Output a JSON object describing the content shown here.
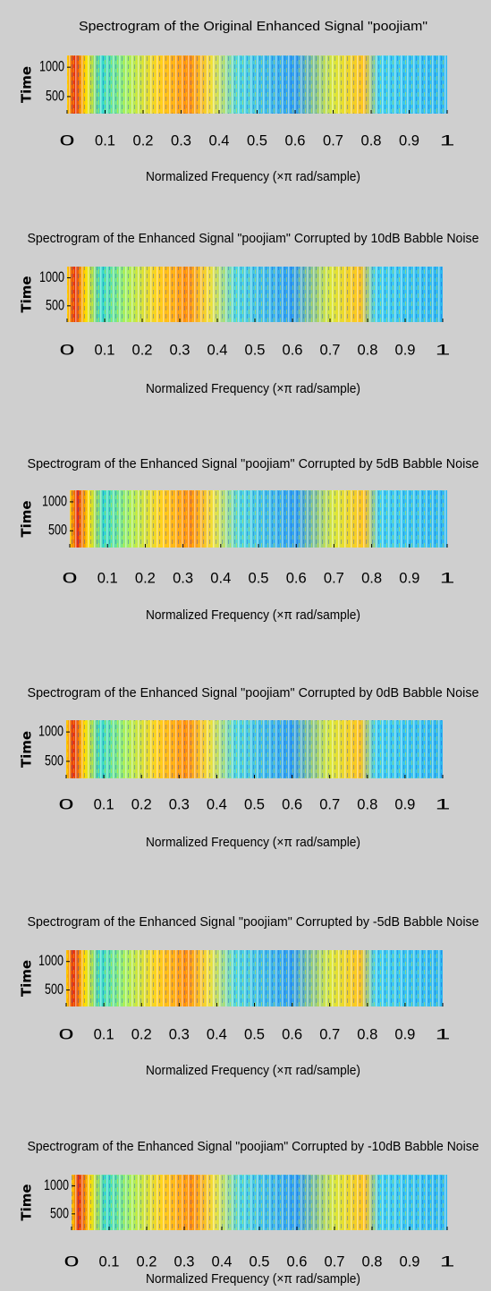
{
  "charts": [
    {
      "chart_data": {
        "type": "spectrogram",
        "title": "Spectrogram of the Original Enhanced Signal \"poojiam\"",
        "xlabel": "Normalized Frequency  (×π rad/sample)",
        "ylabel": "Time",
        "xlim": [
          0,
          1
        ],
        "xticks": [
          0,
          0.1,
          0.2,
          0.3,
          0.4,
          0.5,
          0.6,
          0.7,
          0.8,
          0.9,
          1
        ],
        "ylim": [
          210,
          1200
        ],
        "yticks": [
          500,
          1000
        ]
      }
    },
    {
      "chart_data": {
        "type": "spectrogram",
        "title": "Spectrogram of the Enhanced Signal \"poojiam\" Corrupted by 10dB Babble Noise",
        "xlabel": "Normalized Frequency  (×π rad/sample)",
        "ylabel": "Time",
        "xlim": [
          0,
          1
        ],
        "xticks": [
          0,
          0.1,
          0.2,
          0.3,
          0.4,
          0.5,
          0.6,
          0.7,
          0.8,
          0.9,
          1
        ],
        "ylim": [
          210,
          1200
        ],
        "yticks": [
          500,
          1000
        ]
      }
    },
    {
      "chart_data": {
        "type": "spectrogram",
        "title": "Spectrogram of the Enhanced Signal \"poojiam\" Corrupted by 5dB Babble Noise",
        "xlabel": "Normalized Frequency  (×π rad/sample)",
        "ylabel": "Time",
        "xlim": [
          0,
          1
        ],
        "xticks": [
          0,
          0.1,
          0.2,
          0.3,
          0.4,
          0.5,
          0.6,
          0.7,
          0.8,
          0.9,
          1
        ],
        "ylim": [
          210,
          1200
        ],
        "yticks": [
          500,
          1000
        ]
      }
    },
    {
      "chart_data": {
        "type": "spectrogram",
        "title": "Spectrogram of the Enhanced Signal \"poojiam\" Corrupted by 0dB Babble Noise",
        "xlabel": "Normalized Frequency  (×π rad/sample)",
        "ylabel": "Time",
        "xlim": [
          0,
          1
        ],
        "xticks": [
          0,
          0.1,
          0.2,
          0.3,
          0.4,
          0.5,
          0.6,
          0.7,
          0.8,
          0.9,
          1
        ],
        "ylim": [
          210,
          1200
        ],
        "yticks": [
          500,
          1000
        ]
      }
    },
    {
      "chart_data": {
        "type": "spectrogram",
        "title": "Spectrogram of the Enhanced Signal \"poojiam\" Corrupted by -5dB Babble Noise",
        "xlabel": "Normalized Frequency  (×π rad/sample)",
        "ylabel": "Time",
        "xlim": [
          0,
          1
        ],
        "xticks": [
          0,
          0.1,
          0.2,
          0.3,
          0.4,
          0.5,
          0.6,
          0.7,
          0.8,
          0.9,
          1
        ],
        "ylim": [
          210,
          1200
        ],
        "yticks": [
          500,
          1000
        ]
      }
    },
    {
      "chart_data": {
        "type": "spectrogram",
        "title": "Spectrogram of the Enhanced Signal \"poojiam\" Corrupted by -10dB Babble Noise",
        "xlabel": "Normalized Frequency  (×π rad/sample)",
        "ylabel": "Time",
        "xlim": [
          0,
          1
        ],
        "xticks": [
          0,
          0.1,
          0.2,
          0.3,
          0.4,
          0.5,
          0.6,
          0.7,
          0.8,
          0.9,
          1
        ],
        "ylim": [
          210,
          1200
        ],
        "yticks": [
          500,
          1000
        ]
      }
    }
  ]
}
